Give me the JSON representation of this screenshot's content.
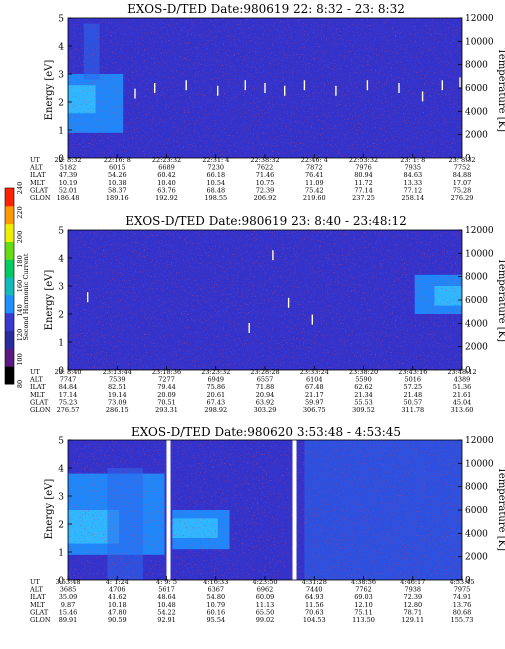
{
  "chart_data": [
    {
      "type": "heatmap",
      "title": "EXOS-D/TED   Date:980619  22: 8:32 - 23: 8:32",
      "ylabel": "Energy [eV]",
      "ylabel_right": "Temperature [K]",
      "ylim": [
        0,
        5
      ],
      "y_ticks": [
        "0",
        "1",
        "2",
        "3",
        "4",
        "5"
      ],
      "ylim_right": [
        0,
        12000
      ],
      "y2_ticks": [
        "0",
        "2000",
        "4000",
        "6000",
        "8000",
        "10000",
        "12000"
      ],
      "background_color": "#3333cc",
      "gap_positions": [],
      "intensity_bands": [
        {
          "x_range": [
            0.0,
            0.14
          ],
          "y_range": [
            0.9,
            3.0
          ],
          "level": "medium"
        },
        {
          "x_range": [
            0.0,
            0.07
          ],
          "y_range": [
            1.6,
            2.6
          ],
          "level": "high"
        },
        {
          "x_range": [
            0.04,
            0.08
          ],
          "y_range": [
            2.8,
            4.8
          ],
          "level": "sparse"
        }
      ],
      "spikes": [
        {
          "x": 0.17,
          "y": 2.3
        },
        {
          "x": 0.22,
          "y": 2.5
        },
        {
          "x": 0.3,
          "y": 2.6
        },
        {
          "x": 0.38,
          "y": 2.4
        },
        {
          "x": 0.45,
          "y": 2.6
        },
        {
          "x": 0.5,
          "y": 2.5
        },
        {
          "x": 0.55,
          "y": 2.4
        },
        {
          "x": 0.6,
          "y": 2.6
        },
        {
          "x": 0.68,
          "y": 2.4
        },
        {
          "x": 0.76,
          "y": 2.6
        },
        {
          "x": 0.84,
          "y": 2.5
        },
        {
          "x": 0.9,
          "y": 2.2
        },
        {
          "x": 0.95,
          "y": 2.6
        },
        {
          "x": 0.995,
          "y": 2.7
        }
      ],
      "table": {
        "labels": [
          "UT",
          "ALT",
          "ILAT",
          "MLT",
          "GLAT",
          "GLON"
        ],
        "columns": [
          [
            "22: 8:32",
            "5182",
            "47.39",
            "10.19",
            "52.01",
            "186.48"
          ],
          [
            "22:16: 8",
            "6015",
            "54.26",
            "10.38",
            "58.37",
            "189.16"
          ],
          [
            "22:23:32",
            "6689",
            "60.42",
            "10.40",
            "63.76",
            "192.92"
          ],
          [
            "22:31: 4",
            "7230",
            "66.18",
            "10.54",
            "68.48",
            "198.55"
          ],
          [
            "22:38:32",
            "7622",
            "71.46",
            "10.75",
            "72.39",
            "206.92"
          ],
          [
            "22:46: 4",
            "7872",
            "76.41",
            "11.09",
            "75.42",
            "219.60"
          ],
          [
            "22:53:32",
            "7976",
            "80.94",
            "11.72",
            "77.14",
            "237.25"
          ],
          [
            "23: 1: 8",
            "7935",
            "84.63",
            "13.33",
            "77.12",
            "258.14"
          ],
          [
            "23: 8:32",
            "7752",
            "84.88",
            "17.07",
            "75.28",
            "276.29"
          ]
        ]
      }
    },
    {
      "type": "heatmap",
      "title": "EXOS-D/TED   Date:980619  23: 8:40 - 23:48:12",
      "ylabel": "Energy [eV]",
      "ylabel_right": "Temperature [K]",
      "ylim": [
        0,
        5
      ],
      "y_ticks": [
        "0",
        "1",
        "2",
        "3",
        "4",
        "5"
      ],
      "ylim_right": [
        0,
        12000
      ],
      "y2_ticks": [
        "0",
        "2000",
        "4000",
        "6000",
        "8000",
        "10000",
        "12000"
      ],
      "background_color": "#3333cc",
      "gap_positions": [],
      "intensity_bands": [
        {
          "x_range": [
            0.88,
            1.0
          ],
          "y_range": [
            2.0,
            3.4
          ],
          "level": "medium"
        },
        {
          "x_range": [
            0.93,
            1.0
          ],
          "y_range": [
            2.3,
            3.0
          ],
          "level": "high"
        }
      ],
      "spikes": [
        {
          "x": 0.05,
          "y": 2.6
        },
        {
          "x": 0.52,
          "y": 4.1
        },
        {
          "x": 0.56,
          "y": 2.4
        },
        {
          "x": 0.62,
          "y": 1.8
        },
        {
          "x": 0.46,
          "y": 1.5
        }
      ],
      "table": {
        "labels": [
          "UT",
          "ALT",
          "ILAT",
          "MLT",
          "GLAT",
          "GLON"
        ],
        "columns": [
          [
            "23: 8:40",
            "7747",
            "84.84",
            "17.14",
            "75.23",
            "276.57"
          ],
          [
            "23:13:44",
            "7539",
            "82.51",
            "19.14",
            "73.09",
            "286.15"
          ],
          [
            "23:18:36",
            "7277",
            "79.44",
            "20.09",
            "70.51",
            "293.31"
          ],
          [
            "23:23:32",
            "6949",
            "75.86",
            "20.61",
            "67.43",
            "298.92"
          ],
          [
            "23:28:28",
            "6557",
            "71.88",
            "20.94",
            "63.92",
            "303.29"
          ],
          [
            "23:33:24",
            "6104",
            "67.48",
            "21.17",
            "59.97",
            "306.75"
          ],
          [
            "23:38:20",
            "5590",
            "62.62",
            "21.34",
            "55.53",
            "309.52"
          ],
          [
            "23:43:16",
            "5016",
            "57.25",
            "21.48",
            "50.57",
            "311.78"
          ],
          [
            "23:48:12",
            "4389",
            "51.36",
            "21.61",
            "45.04",
            "313.60"
          ]
        ]
      }
    },
    {
      "type": "heatmap",
      "title": "EXOS-D/TED   Date:980620  3:53:48 - 4:53:45",
      "ylabel": "Energy [eV]",
      "ylabel_right": "Temperature [K]",
      "ylim": [
        0,
        5
      ],
      "y_ticks": [
        "0",
        "1",
        "2",
        "3",
        "4",
        "5"
      ],
      "ylim_right": [
        0,
        12000
      ],
      "y2_ticks": [
        "0",
        "2000",
        "4000",
        "6000",
        "8000",
        "10000",
        "12000"
      ],
      "background_color": "#3333cc",
      "gap_positions": [
        0.255,
        0.575
      ],
      "intensity_bands": [
        {
          "x_range": [
            0.0,
            0.245
          ],
          "y_range": [
            0.9,
            3.8
          ],
          "level": "medium"
        },
        {
          "x_range": [
            0.0,
            0.13
          ],
          "y_range": [
            1.3,
            2.5
          ],
          "level": "high"
        },
        {
          "x_range": [
            0.265,
            0.41
          ],
          "y_range": [
            1.1,
            2.5
          ],
          "level": "medium"
        },
        {
          "x_range": [
            0.265,
            0.38
          ],
          "y_range": [
            1.5,
            2.2
          ],
          "level": "high"
        },
        {
          "x_range": [
            0.1,
            0.19
          ],
          "y_range": [
            0.0,
            4.0
          ],
          "level": "sparse"
        },
        {
          "x_range": [
            0.6,
            1.0
          ],
          "y_range": [
            0.0,
            5.0
          ],
          "level": "sparse"
        }
      ],
      "spikes": [],
      "table": {
        "labels": [
          "UT",
          "ALT",
          "ILAT",
          "MLT",
          "GLAT",
          "GLON"
        ],
        "columns": [
          [
            "3:53:48",
            "3685",
            "35.09",
            "9.87",
            "15.46",
            "89.91"
          ],
          [
            "4: 1:24",
            "4706",
            "41.62",
            "10.18",
            "47.80",
            "90.59"
          ],
          [
            "4: 9: 5",
            "5617",
            "48.64",
            "10.48",
            "54.22",
            "92.91"
          ],
          [
            "4:16:33",
            "6367",
            "54.80",
            "10.79",
            "60.16",
            "95.54"
          ],
          [
            "4:23:50",
            "6962",
            "60.09",
            "11.13",
            "65.50",
            "99.02"
          ],
          [
            "4:31:28",
            "7440",
            "64.93",
            "11.56",
            "70.63",
            "104.53"
          ],
          [
            "4:38:56",
            "7762",
            "69.03",
            "12.10",
            "75.11",
            "113.50"
          ],
          [
            "4:46:17",
            "7938",
            "72.39",
            "12.80",
            "78.71",
            "129.11"
          ],
          [
            "4:53:45",
            "7975",
            "74.91",
            "13.76",
            "80.68",
            "155.73"
          ]
        ]
      }
    }
  ],
  "colorbar": {
    "title": "Second Harmonic Current",
    "ticks": [
      "80",
      "100",
      "120",
      "140",
      "160",
      "180",
      "200",
      "220",
      "240"
    ],
    "colors": [
      "#000000",
      "#5a1a82",
      "#2b2ba0",
      "#3a3ad0",
      "#1e90ff",
      "#11bbbb",
      "#00cc66",
      "#66dd11",
      "#eeee00",
      "#ff9900",
      "#ff2200"
    ]
  }
}
